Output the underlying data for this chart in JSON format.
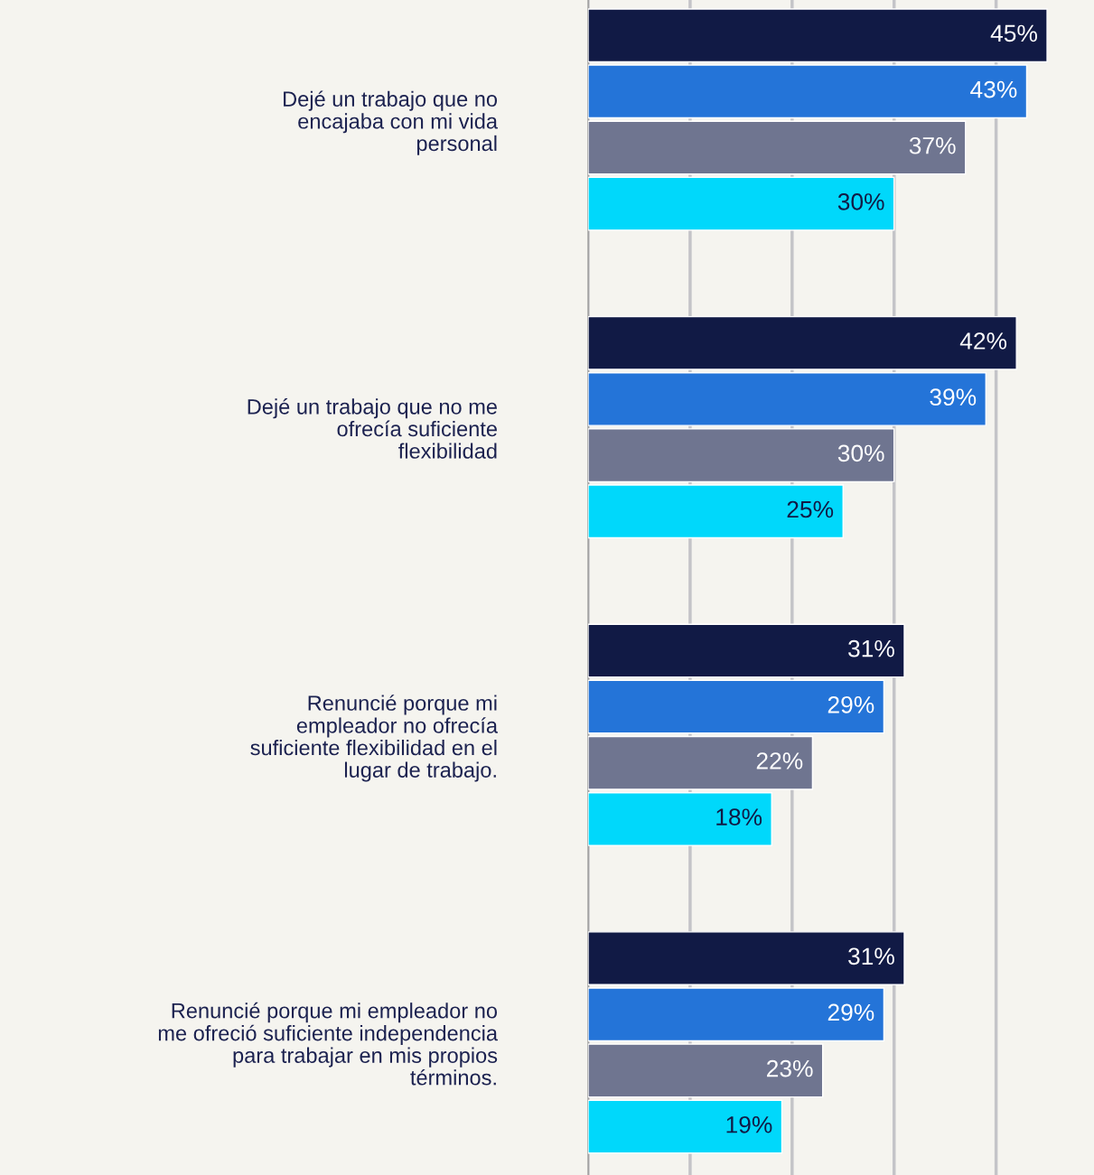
{
  "chart_data": {
    "type": "bar",
    "orientation": "horizontal",
    "categories": [
      "Dejé un trabajo que no\nencajaba con mi vida\npersonal",
      "Dejé un trabajo que no me\nofrecía suficiente\nflexibilidad",
      "Renuncié porque mi\nempleador no ofrecía\nsuficiente flexibilidad en el\nlugar de trabajo.",
      "Renuncié porque mi empleador no\nme ofreció suficiente independencia\npara trabajar en mis propios\ntérminos."
    ],
    "series": [
      {
        "color": "#111a45",
        "values": [
          45,
          42,
          31,
          31
        ],
        "value_labels": [
          "45%",
          "42%",
          "31%",
          "31%"
        ]
      },
      {
        "color": "#2474d8",
        "values": [
          43,
          39,
          29,
          29
        ],
        "value_labels": [
          "43%",
          "39%",
          "29%",
          "29%"
        ]
      },
      {
        "color": "#6f7590",
        "values": [
          37,
          30,
          22,
          23
        ],
        "value_labels": [
          "37%",
          "30%",
          "22%",
          "23%"
        ]
      },
      {
        "color": "#00d8fb",
        "values": [
          30,
          25,
          18,
          19
        ],
        "value_labels": [
          "30%",
          "25%",
          "18%",
          "19%"
        ]
      }
    ],
    "xlim": [
      0,
      49.6
    ],
    "xticks": [
      {
        "value": 0,
        "label": null
      },
      {
        "value": 10,
        "label": null
      },
      {
        "value": 20,
        "label": null
      },
      {
        "value": 30,
        "label": null
      },
      {
        "value": 40,
        "label": null
      }
    ],
    "grid": "x",
    "tick_labels": "y"
  }
}
